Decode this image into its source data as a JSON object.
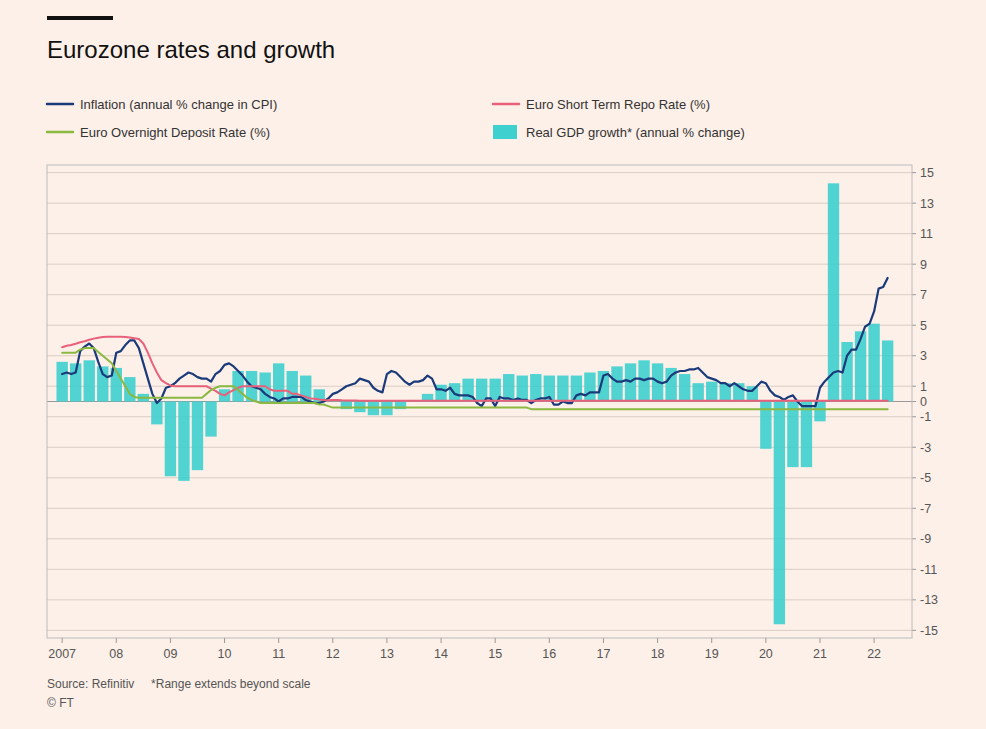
{
  "chart_data": {
    "type": "line",
    "title": "Eurozone rates and growth",
    "annotations": [
      "Source: Refinitiv     *Range extends beyond scale",
      "© FT"
    ],
    "x": [
      2007.0,
      2007.083,
      2007.167,
      2007.25,
      2007.333,
      2007.417,
      2007.5,
      2007.583,
      2007.667,
      2007.75,
      2007.833,
      2007.917,
      2008.0,
      2008.083,
      2008.167,
      2008.25,
      2008.333,
      2008.417,
      2008.5,
      2008.583,
      2008.667,
      2008.75,
      2008.833,
      2008.917,
      2009.0,
      2009.083,
      2009.167,
      2009.25,
      2009.333,
      2009.417,
      2009.5,
      2009.583,
      2009.667,
      2009.75,
      2009.833,
      2009.917,
      2010.0,
      2010.083,
      2010.167,
      2010.25,
      2010.333,
      2010.417,
      2010.5,
      2010.583,
      2010.667,
      2010.75,
      2010.833,
      2010.917,
      2011.0,
      2011.083,
      2011.167,
      2011.25,
      2011.333,
      2011.417,
      2011.5,
      2011.583,
      2011.667,
      2011.75,
      2011.833,
      2011.917,
      2012.0,
      2012.083,
      2012.167,
      2012.25,
      2012.333,
      2012.417,
      2012.5,
      2012.583,
      2012.667,
      2012.75,
      2012.833,
      2012.917,
      2013.0,
      2013.083,
      2013.167,
      2013.25,
      2013.333,
      2013.417,
      2013.5,
      2013.583,
      2013.667,
      2013.75,
      2013.833,
      2013.917,
      2014.0,
      2014.083,
      2014.167,
      2014.25,
      2014.333,
      2014.417,
      2014.5,
      2014.583,
      2014.667,
      2014.75,
      2014.833,
      2014.917,
      2015.0,
      2015.083,
      2015.167,
      2015.25,
      2015.333,
      2015.417,
      2015.5,
      2015.583,
      2015.667,
      2015.75,
      2015.833,
      2015.917,
      2016.0,
      2016.083,
      2016.167,
      2016.25,
      2016.333,
      2016.417,
      2016.5,
      2016.583,
      2016.667,
      2016.75,
      2016.833,
      2016.917,
      2017.0,
      2017.083,
      2017.167,
      2017.25,
      2017.333,
      2017.417,
      2017.5,
      2017.583,
      2017.667,
      2017.75,
      2017.833,
      2017.917,
      2018.0,
      2018.083,
      2018.167,
      2018.25,
      2018.333,
      2018.417,
      2018.5,
      2018.583,
      2018.667,
      2018.75,
      2018.833,
      2018.917,
      2019.0,
      2019.083,
      2019.167,
      2019.25,
      2019.333,
      2019.417,
      2019.5,
      2019.583,
      2019.667,
      2019.75,
      2019.833,
      2019.917,
      2020.0,
      2020.083,
      2020.167,
      2020.25,
      2020.333,
      2020.417,
      2020.5,
      2020.583,
      2020.667,
      2020.75,
      2020.833,
      2020.917,
      2021.0,
      2021.083,
      2021.167,
      2021.25,
      2021.333,
      2021.417,
      2021.5,
      2021.583,
      2021.667,
      2021.75,
      2021.833,
      2021.917,
      2022.0,
      2022.083,
      2022.167,
      2022.25
    ],
    "series": [
      {
        "name": "Inflation (annual % change in CPI)",
        "color": "#1a3a7a",
        "type": "line",
        "values": [
          1.8,
          1.9,
          1.8,
          1.9,
          3.3,
          3.6,
          3.8,
          3.5,
          2.6,
          1.8,
          1.6,
          1.7,
          3.2,
          3.3,
          3.7,
          4.0,
          4.0,
          3.5,
          2.5,
          1.5,
          0.5,
          -0.1,
          0.2,
          0.9,
          1.0,
          1.2,
          1.5,
          1.7,
          1.9,
          1.8,
          1.6,
          1.5,
          1.5,
          1.3,
          1.8,
          2.0,
          2.4,
          2.5,
          2.3,
          2.0,
          1.7,
          1.3,
          1.0,
          0.9,
          0.8,
          0.5,
          0.3,
          0.2,
          0.0,
          0.2,
          0.2,
          0.3,
          0.3,
          0.3,
          0.1,
          0.0,
          -0.1,
          -0.1,
          0.0,
          0.2,
          0.5,
          0.6,
          0.8,
          1.0,
          1.1,
          1.2,
          1.5,
          1.4,
          1.3,
          0.9,
          0.7,
          0.6,
          1.8,
          2.0,
          1.9,
          1.6,
          1.3,
          1.1,
          1.3,
          1.3,
          1.4,
          1.7,
          1.5,
          0.8,
          0.8,
          0.7,
          0.9,
          0.5,
          0.4,
          0.4,
          0.4,
          0.3,
          -0.1,
          -0.3,
          0.2,
          0.2,
          -0.3,
          0.3,
          0.2,
          0.2,
          0.1,
          0.2,
          0.1,
          0.1,
          -0.1,
          0.1,
          0.2,
          0.2,
          0.3,
          -0.2,
          -0.2,
          0.0,
          -0.1,
          -0.1,
          0.4,
          0.5,
          0.4,
          0.6,
          0.6,
          0.6,
          1.7,
          1.8,
          1.5,
          1.3,
          1.3,
          1.4,
          1.3,
          1.5,
          1.5,
          1.4,
          1.5,
          1.5,
          1.3,
          1.2,
          1.3,
          1.7,
          1.9,
          2.0,
          2.0,
          2.1,
          2.1,
          2.2,
          1.9,
          1.6,
          1.5,
          1.4,
          1.2,
          1.2,
          1.0,
          1.2,
          1.0,
          0.8,
          0.7,
          0.7,
          1.0,
          1.3,
          1.2,
          0.7,
          0.4,
          0.3,
          0.1,
          0.3,
          0.4,
          0.0,
          -0.3,
          -0.3,
          -0.3,
          -0.3,
          0.9,
          1.3,
          1.6,
          1.9,
          2.0,
          1.9,
          3.0,
          3.4,
          3.4,
          4.1,
          4.9,
          5.1,
          5.9,
          7.4,
          7.5,
          8.1
        ]
      },
      {
        "name": "Euro Short Term Repo Rate (%)",
        "color": "#e8607a",
        "type": "line",
        "values": [
          3.56,
          3.65,
          3.7,
          3.78,
          3.88,
          3.95,
          4.05,
          4.12,
          4.18,
          4.22,
          4.24,
          4.25,
          4.25,
          4.24,
          4.23,
          4.2,
          4.15,
          4.1,
          3.8,
          3.2,
          2.5,
          1.9,
          1.4,
          1.2,
          1.05,
          1.0,
          1.0,
          1.0,
          1.0,
          1.0,
          1.0,
          1.0,
          1.0,
          0.85,
          0.7,
          0.5,
          0.4,
          0.6,
          0.75,
          0.9,
          1.0,
          1.0,
          1.0,
          1.0,
          1.0,
          1.0,
          0.8,
          0.7,
          0.7,
          0.7,
          0.7,
          0.5,
          0.5,
          0.4,
          0.3,
          0.2,
          0.18,
          0.13,
          0.1,
          0.08,
          0.1,
          0.1,
          0.08,
          0.07,
          0.07,
          0.06,
          0.05,
          0.05,
          0.05,
          0.05,
          0.05,
          0.05,
          0.05,
          0.05,
          0.05,
          0.05,
          0.05,
          0.05,
          0.05,
          0.05,
          0.05,
          0.05,
          0.05,
          0.05,
          0.05,
          0.05,
          0.05,
          0.05,
          0.05,
          0.05,
          0.05,
          0.05,
          0.05,
          0.05,
          0.05,
          0.05,
          0.05,
          0.05,
          0.05,
          0.05,
          0.05,
          0.05,
          0.05,
          0.05,
          0.05,
          0.05,
          0.05,
          0.05,
          0.05,
          0.05,
          0.05,
          0.05,
          0.05,
          0.05,
          0.05,
          0.05,
          0.05,
          0.05,
          0.05,
          0.05,
          0.05,
          0.05,
          0.05,
          0.05,
          0.05,
          0.05,
          0.05,
          0.05,
          0.05,
          0.05,
          0.05,
          0.05,
          0.05,
          0.05,
          0.05,
          0.05,
          0.05,
          0.05,
          0.05,
          0.05,
          0.05,
          0.05,
          0.05,
          0.05,
          0.05,
          0.05,
          0.05,
          0.05,
          0.05,
          0.05,
          0.05,
          0.05,
          0.05,
          0.05,
          0.05,
          0.05,
          0.05,
          0.05,
          0.05,
          0.05,
          0.05,
          0.05,
          0.05,
          0.05,
          0.05,
          0.05,
          0.05,
          0.05,
          0.05,
          0.05,
          0.05,
          0.05,
          0.05,
          0.05,
          0.05,
          0.05,
          0.05,
          0.05,
          0.05,
          0.05,
          0.05,
          0.05,
          0.05,
          0.05
        ]
      },
      {
        "name": "Euro Overnight Deposit Rate (%)",
        "color": "#8ab840",
        "type": "line",
        "values": [
          3.2,
          3.2,
          3.2,
          3.2,
          3.4,
          3.5,
          3.5,
          3.5,
          3.25,
          3.0,
          2.75,
          2.5,
          2.0,
          1.5,
          1.0,
          0.5,
          0.3,
          0.25,
          0.25,
          0.25,
          0.25,
          0.25,
          0.25,
          0.25,
          0.25,
          0.25,
          0.25,
          0.25,
          0.25,
          0.25,
          0.25,
          0.25,
          0.5,
          0.75,
          0.9,
          1.0,
          1.0,
          1.0,
          1.0,
          0.75,
          0.5,
          0.25,
          0.1,
          0.0,
          -0.1,
          -0.1,
          -0.1,
          -0.1,
          -0.1,
          -0.1,
          -0.1,
          -0.1,
          -0.1,
          -0.1,
          -0.1,
          -0.1,
          -0.1,
          -0.2,
          -0.2,
          -0.3,
          -0.4,
          -0.4,
          -0.4,
          -0.4,
          -0.4,
          -0.4,
          -0.4,
          -0.4,
          -0.4,
          -0.4,
          -0.4,
          -0.4,
          -0.4,
          -0.4,
          -0.4,
          -0.4,
          -0.4,
          -0.4,
          -0.4,
          -0.4,
          -0.4,
          -0.4,
          -0.4,
          -0.4,
          -0.4,
          -0.4,
          -0.4,
          -0.4,
          -0.4,
          -0.4,
          -0.4,
          -0.4,
          -0.4,
          -0.4,
          -0.4,
          -0.4,
          -0.4,
          -0.4,
          -0.4,
          -0.4,
          -0.4,
          -0.4,
          -0.4,
          -0.4,
          -0.5,
          -0.5,
          -0.5,
          -0.5,
          -0.5,
          -0.5,
          -0.5,
          -0.5,
          -0.5,
          -0.5,
          -0.5,
          -0.5,
          -0.5,
          -0.5,
          -0.5,
          -0.5,
          -0.5,
          -0.5,
          -0.5,
          -0.5,
          -0.5,
          -0.5,
          -0.5,
          -0.5,
          -0.5,
          -0.5,
          -0.5,
          -0.5,
          -0.5,
          -0.5,
          -0.5,
          -0.5,
          -0.5,
          -0.5,
          -0.5,
          -0.5,
          -0.5,
          -0.5,
          -0.5,
          -0.5,
          -0.5,
          -0.5,
          -0.5,
          -0.5,
          -0.5,
          -0.5,
          -0.5,
          -0.5,
          -0.5,
          -0.5,
          -0.5,
          -0.5,
          -0.5,
          -0.5,
          -0.5,
          -0.5,
          -0.5,
          -0.5,
          -0.5,
          -0.5,
          -0.5,
          -0.5,
          -0.5,
          -0.5,
          -0.5,
          -0.5,
          -0.5,
          -0.5,
          -0.5,
          -0.5,
          -0.5,
          -0.5,
          -0.5,
          -0.5,
          -0.5,
          -0.5,
          -0.5,
          -0.5,
          -0.5,
          -0.5
        ]
      },
      {
        "name": "Real GDP growth* (annual % change)",
        "color": "#3ecfcf",
        "type": "bar",
        "x": [
          2007.0,
          2007.25,
          2007.5,
          2007.75,
          2008.0,
          2008.25,
          2008.5,
          2008.75,
          2009.0,
          2009.25,
          2009.5,
          2009.75,
          2010.0,
          2010.25,
          2010.5,
          2010.75,
          2011.0,
          2011.25,
          2011.5,
          2011.75,
          2012.0,
          2012.25,
          2012.5,
          2012.75,
          2013.0,
          2013.25,
          2013.5,
          2013.75,
          2014.0,
          2014.25,
          2014.5,
          2014.75,
          2015.0,
          2015.25,
          2015.5,
          2015.75,
          2016.0,
          2016.25,
          2016.5,
          2016.75,
          2017.0,
          2017.25,
          2017.5,
          2017.75,
          2018.0,
          2018.25,
          2018.5,
          2018.75,
          2019.0,
          2019.25,
          2019.5,
          2019.75,
          2020.0,
          2020.25,
          2020.5,
          2020.75,
          2021.0,
          2021.25,
          2021.5,
          2021.75,
          2022.0,
          2022.25
        ],
        "values": [
          2.6,
          2.5,
          2.7,
          2.3,
          2.2,
          1.6,
          0.5,
          -1.5,
          -4.9,
          -5.2,
          -4.5,
          -2.3,
          0.8,
          2.0,
          2.0,
          1.9,
          2.5,
          2.0,
          1.7,
          0.8,
          0.0,
          -0.5,
          -0.7,
          -0.9,
          -0.9,
          -0.5,
          0.1,
          0.5,
          1.1,
          1.2,
          1.5,
          1.5,
          1.5,
          1.8,
          1.7,
          1.8,
          1.7,
          1.7,
          1.7,
          1.9,
          2.0,
          2.3,
          2.5,
          2.7,
          2.5,
          2.2,
          1.8,
          1.2,
          1.3,
          1.2,
          1.2,
          1.0,
          -3.1,
          -14.6,
          -4.3,
          -4.3,
          -1.3,
          14.3,
          3.9,
          4.6,
          5.1,
          4.0
        ]
      }
    ],
    "xlim": [
      2006.72,
      2022.7
    ],
    "xticks": [
      2007,
      {
        "value": 2008,
        "label": "08"
      },
      {
        "value": 2009,
        "label": "09"
      },
      {
        "value": 2010,
        "label": "10"
      },
      {
        "value": 2011,
        "label": "11"
      },
      {
        "value": 2012,
        "label": "12"
      },
      {
        "value": 2013,
        "label": "13"
      },
      {
        "value": 2014,
        "label": "14"
      },
      {
        "value": 2015,
        "label": "15"
      },
      {
        "value": 2016,
        "label": "16"
      },
      {
        "value": 2017,
        "label": "17"
      },
      {
        "value": 2018,
        "label": "18"
      },
      {
        "value": 2019,
        "label": "19"
      },
      {
        "value": 2020,
        "label": "20"
      },
      {
        "value": 2021,
        "label": "21"
      },
      {
        "value": 2022,
        "label": "22"
      }
    ],
    "ylim": [
      -15.5,
      15.5
    ],
    "yticks": [
      -15,
      -13,
      -11,
      -9,
      -7,
      -5,
      -3,
      -1,
      0,
      1,
      3,
      5,
      7,
      9,
      11,
      13,
      15
    ],
    "grid": true,
    "legend": "top"
  }
}
